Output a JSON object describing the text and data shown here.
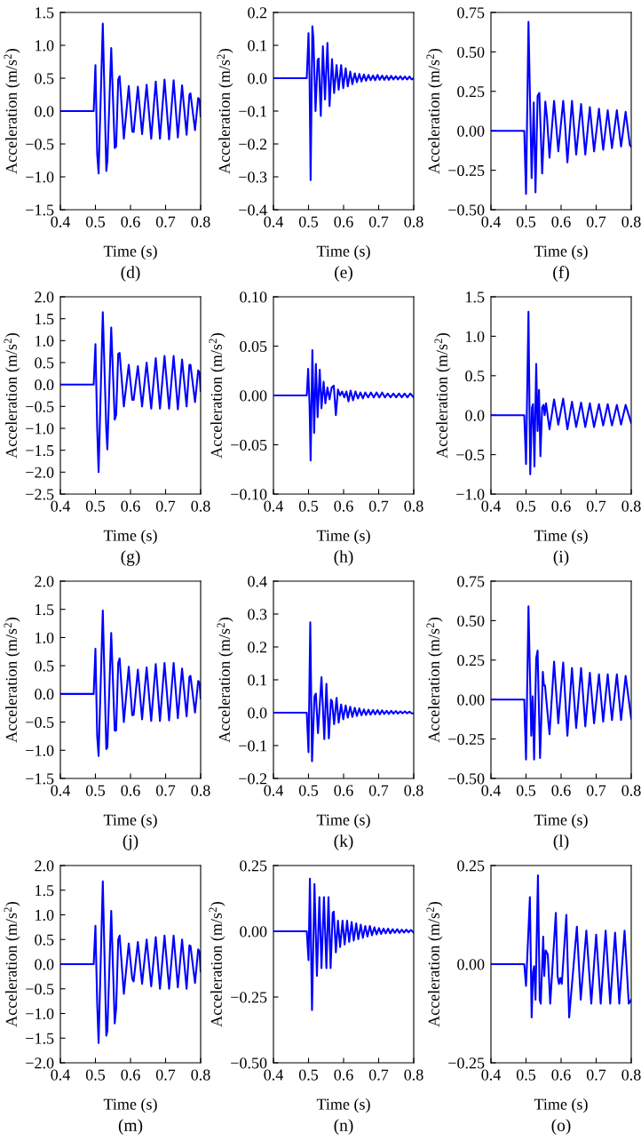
{
  "chart_data": [
    {
      "type": "line",
      "xlabel": "Time (s)",
      "ylabel": "Acceleration (m/s$^{2}$)",
      "annotations": [
        "(d)"
      ],
      "xlim": [
        0.4,
        0.8
      ],
      "xticks": [
        0.4,
        0.5,
        0.6,
        0.7,
        0.8
      ],
      "ylim": [
        -1.5,
        1.5
      ],
      "yticks": [
        {
          "value": -1.5,
          "label": "−1.5"
        },
        {
          "value": -1.0,
          "label": "−1.0"
        },
        {
          "value": -0.5,
          "label": "−0.5"
        },
        {
          "value": 0,
          "label": "0.0"
        },
        {
          "value": 0.5,
          "label": "0.5"
        },
        {
          "value": 1.0,
          "label": "1.0"
        },
        {
          "value": 1.5,
          "label": "1.5"
        }
      ],
      "series": [
        {
          "color": "#0000ff",
          "x": [
            0.4,
            0.495,
            0.5,
            0.505,
            0.509,
            0.521,
            0.531,
            0.534,
            0.545,
            0.555,
            0.559,
            0.565,
            0.569,
            0.581,
            0.595,
            0.605,
            0.609,
            0.621,
            0.633,
            0.646,
            0.659,
            0.672,
            0.684,
            0.697,
            0.71,
            0.723,
            0.735,
            0.747,
            0.76,
            0.768,
            0.771,
            0.784,
            0.793,
            0.797,
            0.8
          ],
          "values": [
            0,
            0,
            0.7,
            -0.65,
            -0.95,
            1.33,
            -0.91,
            -0.76,
            0.96,
            -0.56,
            -0.54,
            0.48,
            0.53,
            -0.42,
            0.38,
            -0.31,
            -0.32,
            0.37,
            -0.35,
            0.4,
            -0.42,
            0.45,
            -0.42,
            0.48,
            -0.43,
            0.47,
            -0.4,
            0.39,
            -0.36,
            0.25,
            0.27,
            -0.29,
            0.2,
            0.17,
            -0.08
          ]
        }
      ]
    },
    {
      "type": "line",
      "xlabel": "Time (s)",
      "ylabel": "Acceleration (m/s$^{2}$)",
      "annotations": [
        "(e)"
      ],
      "xlim": [
        0.4,
        0.8
      ],
      "xticks": [
        0.4,
        0.5,
        0.6,
        0.7,
        0.8
      ],
      "ylim": [
        -0.4,
        0.2
      ],
      "yticks": [
        {
          "value": -0.4,
          "label": "−0.4"
        },
        {
          "value": -0.3,
          "label": "−0.3"
        },
        {
          "value": -0.2,
          "label": "−0.2"
        },
        {
          "value": -0.1,
          "label": "−0.1"
        },
        {
          "value": 0,
          "label": "0.0"
        },
        {
          "value": 0.1,
          "label": "0.1"
        },
        {
          "value": 0.2,
          "label": "0.2"
        }
      ],
      "series": [
        {
          "color": "#0000ff",
          "x": [
            0.4,
            0.495,
            0.5,
            0.503,
            0.506,
            0.511,
            0.514,
            0.52,
            0.526,
            0.529,
            0.535,
            0.541,
            0.547,
            0.554,
            0.56,
            0.567,
            0.573,
            0.58,
            0.586,
            0.593,
            0.599,
            0.606,
            0.612,
            0.619,
            0.625,
            0.632,
            0.638,
            0.645,
            0.651,
            0.658,
            0.664,
            0.671,
            0.677,
            0.684,
            0.69,
            0.697,
            0.703,
            0.71,
            0.716,
            0.723,
            0.729,
            0.736,
            0.742,
            0.749,
            0.755,
            0.762,
            0.768,
            0.775,
            0.781,
            0.788,
            0.794,
            0.8
          ],
          "values": [
            0,
            0,
            0.137,
            0.0,
            -0.31,
            0.158,
            0.12,
            -0.1,
            0.055,
            0.06,
            -0.115,
            0.097,
            -0.065,
            0.107,
            -0.085,
            0.058,
            -0.045,
            0.04,
            -0.035,
            0.04,
            -0.03,
            0.03,
            -0.025,
            0.02,
            -0.018,
            0.015,
            -0.012,
            0.013,
            -0.01,
            0.011,
            -0.008,
            0.01,
            -0.006,
            0.008,
            -0.006,
            0.01,
            -0.005,
            0.008,
            -0.005,
            0.007,
            -0.005,
            0.007,
            -0.004,
            0.006,
            -0.004,
            0.006,
            -0.004,
            0.005,
            -0.004,
            0.005,
            -0.004,
            0.0
          ]
        }
      ]
    },
    {
      "type": "line",
      "xlabel": "Time (s)",
      "ylabel": "Acceleration (m/s$^{2}$)",
      "annotations": [
        "(f)"
      ],
      "xlim": [
        0.4,
        0.8
      ],
      "xticks": [
        0.4,
        0.5,
        0.6,
        0.7,
        0.8
      ],
      "ylim": [
        -0.5,
        0.75
      ],
      "yticks": [
        {
          "value": -0.5,
          "label": "−0.50"
        },
        {
          "value": -0.25,
          "label": "−0.25"
        },
        {
          "value": 0,
          "label": "0.00"
        },
        {
          "value": 0.25,
          "label": "0.25"
        },
        {
          "value": 0.5,
          "label": "0.50"
        },
        {
          "value": 0.75,
          "label": "0.75"
        }
      ],
      "series": [
        {
          "color": "#0000ff",
          "x": [
            0.4,
            0.495,
            0.5,
            0.507,
            0.516,
            0.522,
            0.527,
            0.533,
            0.538,
            0.546,
            0.555,
            0.56,
            0.567,
            0.58,
            0.585,
            0.592,
            0.606,
            0.611,
            0.618,
            0.631,
            0.643,
            0.657,
            0.669,
            0.682,
            0.694,
            0.708,
            0.72,
            0.733,
            0.745,
            0.759,
            0.771,
            0.784,
            0.796,
            0.8
          ],
          "values": [
            0,
            0,
            -0.4,
            0.69,
            -0.3,
            0.18,
            -0.39,
            0.22,
            0.24,
            -0.27,
            0.185,
            0.08,
            -0.17,
            0.19,
            0.06,
            -0.13,
            0.19,
            0.05,
            -0.2,
            0.19,
            -0.15,
            0.17,
            -0.15,
            0.15,
            -0.13,
            0.14,
            -0.12,
            0.13,
            -0.11,
            0.13,
            -0.1,
            0.12,
            -0.09,
            -0.1
          ]
        }
      ]
    },
    {
      "type": "line",
      "xlabel": "Time (s)",
      "ylabel": "Acceleration (m/s$^{2}$)",
      "annotations": [
        "(g)"
      ],
      "xlim": [
        0.4,
        0.8
      ],
      "xticks": [
        0.4,
        0.5,
        0.6,
        0.7,
        0.8
      ],
      "ylim": [
        -2.5,
        2.0
      ],
      "yticks": [
        {
          "value": -2.5,
          "label": "−2.5"
        },
        {
          "value": -2.0,
          "label": "−2.0"
        },
        {
          "value": -1.5,
          "label": "−1.5"
        },
        {
          "value": -1.0,
          "label": "−1.0"
        },
        {
          "value": -0.5,
          "label": "−0.5"
        },
        {
          "value": 0,
          "label": "0.0"
        },
        {
          "value": 0.5,
          "label": "0.5"
        },
        {
          "value": 1.0,
          "label": "1.0"
        },
        {
          "value": 1.5,
          "label": "1.5"
        },
        {
          "value": 2.0,
          "label": "2.0"
        }
      ],
      "series": [
        {
          "color": "#0000ff",
          "x": [
            0.4,
            0.495,
            0.5,
            0.505,
            0.509,
            0.521,
            0.531,
            0.534,
            0.545,
            0.555,
            0.559,
            0.565,
            0.569,
            0.581,
            0.595,
            0.605,
            0.609,
            0.621,
            0.633,
            0.646,
            0.659,
            0.672,
            0.684,
            0.697,
            0.71,
            0.723,
            0.735,
            0.747,
            0.76,
            0.768,
            0.771,
            0.784,
            0.793,
            0.797,
            0.8
          ],
          "values": [
            0,
            0,
            0.92,
            -1.0,
            -2.0,
            1.65,
            -1.05,
            -1.48,
            1.3,
            -0.8,
            -0.7,
            0.7,
            0.72,
            -0.5,
            0.45,
            -0.35,
            -0.35,
            0.42,
            -0.5,
            0.5,
            -0.55,
            0.6,
            -0.55,
            0.65,
            -0.55,
            0.65,
            -0.57,
            0.57,
            -0.5,
            0.45,
            0.45,
            -0.4,
            0.32,
            0.27,
            -0.15
          ]
        }
      ]
    },
    {
      "type": "line",
      "xlabel": "Time (s)",
      "ylabel": "Acceleration (m/s$^{2}$)",
      "annotations": [
        "(h)"
      ],
      "xlim": [
        0.4,
        0.8
      ],
      "xticks": [
        0.4,
        0.5,
        0.6,
        0.7,
        0.8
      ],
      "ylim": [
        -0.1,
        0.1
      ],
      "yticks": [
        {
          "value": -0.1,
          "label": "−0.10"
        },
        {
          "value": -0.05,
          "label": "−0.05"
        },
        {
          "value": 0,
          "label": "0.00"
        },
        {
          "value": 0.05,
          "label": "0.05"
        },
        {
          "value": 0.1,
          "label": "0.10"
        }
      ],
      "series": [
        {
          "color": "#0000ff",
          "x": [
            0.4,
            0.495,
            0.499,
            0.503,
            0.506,
            0.511,
            0.516,
            0.521,
            0.526,
            0.532,
            0.537,
            0.543,
            0.548,
            0.554,
            0.56,
            0.566,
            0.572,
            0.578,
            0.584,
            0.59,
            0.596,
            0.602,
            0.608,
            0.614,
            0.62,
            0.627,
            0.634,
            0.641,
            0.648,
            0.655,
            0.662,
            0.67,
            0.678,
            0.686,
            0.694,
            0.702,
            0.71,
            0.718,
            0.726,
            0.734,
            0.742,
            0.75,
            0.758,
            0.766,
            0.774,
            0.782,
            0.79,
            0.8
          ],
          "values": [
            0,
            0,
            0.027,
            -0.01,
            -0.066,
            0.046,
            -0.038,
            0.032,
            -0.022,
            0.026,
            -0.013,
            0.014,
            -0.008,
            0.008,
            -0.004,
            0.008,
            0.01,
            -0.02,
            0.006,
            0.0,
            0.004,
            -0.002,
            0.004,
            -0.006,
            0.005,
            -0.005,
            0.004,
            -0.003,
            0.003,
            -0.003,
            0.003,
            -0.002,
            0.003,
            -0.002,
            0.003,
            -0.002,
            0.003,
            -0.002,
            0.002,
            -0.002,
            0.002,
            -0.002,
            0.002,
            -0.002,
            0.002,
            -0.002,
            0.002,
            -0.002
          ]
        }
      ]
    },
    {
      "type": "line",
      "xlabel": "Time (s)",
      "ylabel": "Acceleration (m/s$^{2}$)",
      "annotations": [
        "(i)"
      ],
      "xlim": [
        0.4,
        0.8
      ],
      "xticks": [
        0.4,
        0.5,
        0.6,
        0.7,
        0.8
      ],
      "ylim": [
        -1.0,
        1.5
      ],
      "yticks": [
        {
          "value": -1.0,
          "label": "−1.0"
        },
        {
          "value": -0.5,
          "label": "−0.5"
        },
        {
          "value": 0,
          "label": "0.0"
        },
        {
          "value": 0.5,
          "label": "0.5"
        },
        {
          "value": 1.0,
          "label": "1.0"
        },
        {
          "value": 1.5,
          "label": "1.5"
        }
      ],
      "series": [
        {
          "color": "#0000ff",
          "x": [
            0.4,
            0.495,
            0.5,
            0.507,
            0.512,
            0.517,
            0.52,
            0.524,
            0.529,
            0.533,
            0.537,
            0.541,
            0.546,
            0.55,
            0.553,
            0.557,
            0.567,
            0.58,
            0.592,
            0.606,
            0.618,
            0.631,
            0.643,
            0.657,
            0.669,
            0.682,
            0.694,
            0.708,
            0.72,
            0.733,
            0.745,
            0.759,
            0.771,
            0.784,
            0.8
          ],
          "values": [
            0,
            0,
            -0.62,
            1.31,
            -0.75,
            0.1,
            0.14,
            -0.65,
            0.65,
            -0.2,
            0.32,
            -0.52,
            0.1,
            0.13,
            0.0,
            0.15,
            -0.18,
            0.2,
            -0.12,
            0.21,
            -0.18,
            0.17,
            -0.15,
            0.16,
            -0.15,
            0.15,
            -0.15,
            0.14,
            -0.13,
            0.14,
            -0.13,
            0.13,
            -0.12,
            0.13,
            -0.1
          ]
        }
      ]
    },
    {
      "type": "line",
      "xlabel": "Time (s)",
      "ylabel": "Acceleration (m/s$^{2}$)",
      "annotations": [
        "(j)"
      ],
      "xlim": [
        0.4,
        0.8
      ],
      "xticks": [
        0.4,
        0.5,
        0.6,
        0.7,
        0.8
      ],
      "ylim": [
        -1.5,
        2.0
      ],
      "yticks": [
        {
          "value": -1.5,
          "label": "−1.5"
        },
        {
          "value": -1.0,
          "label": "−1.0"
        },
        {
          "value": -0.5,
          "label": "−0.5"
        },
        {
          "value": 0,
          "label": "0.0"
        },
        {
          "value": 0.5,
          "label": "0.5"
        },
        {
          "value": 1.0,
          "label": "1.0"
        },
        {
          "value": 1.5,
          "label": "1.5"
        },
        {
          "value": 2.0,
          "label": "2.0"
        }
      ],
      "series": [
        {
          "color": "#0000ff",
          "x": [
            0.4,
            0.495,
            0.5,
            0.505,
            0.509,
            0.521,
            0.531,
            0.534,
            0.545,
            0.555,
            0.559,
            0.565,
            0.569,
            0.581,
            0.595,
            0.605,
            0.609,
            0.621,
            0.633,
            0.646,
            0.659,
            0.672,
            0.684,
            0.697,
            0.71,
            0.723,
            0.735,
            0.747,
            0.76,
            0.768,
            0.771,
            0.784,
            0.793,
            0.797,
            0.8
          ],
          "values": [
            0,
            0,
            0.8,
            -0.75,
            -1.1,
            1.48,
            -0.98,
            -0.95,
            1.08,
            -0.65,
            -0.65,
            0.55,
            0.63,
            -0.5,
            0.48,
            -0.38,
            -0.37,
            0.43,
            -0.45,
            0.47,
            -0.48,
            0.53,
            -0.48,
            0.55,
            -0.47,
            0.55,
            -0.43,
            0.45,
            -0.4,
            0.3,
            0.32,
            -0.33,
            0.23,
            0.2,
            -0.08
          ]
        }
      ]
    },
    {
      "type": "line",
      "xlabel": "Time (s)",
      "ylabel": "Acceleration (m/s$^{2}$)",
      "annotations": [
        "(k)"
      ],
      "xlim": [
        0.4,
        0.8
      ],
      "xticks": [
        0.4,
        0.5,
        0.6,
        0.7,
        0.8
      ],
      "ylim": [
        -0.2,
        0.4
      ],
      "yticks": [
        {
          "value": -0.2,
          "label": "−0.2"
        },
        {
          "value": -0.1,
          "label": "−0.1"
        },
        {
          "value": 0,
          "label": "0.0"
        },
        {
          "value": 0.1,
          "label": "0.1"
        },
        {
          "value": 0.2,
          "label": "0.2"
        },
        {
          "value": 0.3,
          "label": "0.3"
        },
        {
          "value": 0.4,
          "label": "0.4"
        }
      ],
      "series": [
        {
          "color": "#0000ff",
          "x": [
            0.4,
            0.495,
            0.5,
            0.505,
            0.51,
            0.517,
            0.521,
            0.527,
            0.537,
            0.545,
            0.551,
            0.558,
            0.564,
            0.567,
            0.573,
            0.58,
            0.586,
            0.593,
            0.599,
            0.606,
            0.612,
            0.619,
            0.625,
            0.632,
            0.638,
            0.645,
            0.651,
            0.658,
            0.664,
            0.671,
            0.677,
            0.684,
            0.69,
            0.697,
            0.703,
            0.71,
            0.716,
            0.723,
            0.729,
            0.736,
            0.742,
            0.749,
            0.755,
            0.762,
            0.768,
            0.775,
            0.781,
            0.788,
            0.794,
            0.8
          ],
          "values": [
            0,
            0,
            -0.12,
            0.275,
            -0.148,
            0.05,
            0.058,
            -0.062,
            0.108,
            -0.08,
            0.088,
            -0.078,
            0.04,
            0.035,
            -0.035,
            0.045,
            -0.03,
            0.025,
            -0.02,
            0.022,
            -0.015,
            0.018,
            -0.013,
            0.015,
            -0.01,
            0.013,
            -0.008,
            0.01,
            -0.007,
            0.009,
            -0.006,
            0.008,
            -0.005,
            0.008,
            -0.005,
            0.007,
            -0.004,
            0.006,
            -0.004,
            0.006,
            -0.003,
            0.005,
            -0.003,
            0.004,
            -0.002,
            0.004,
            -0.002,
            0.003,
            -0.002,
            -0.002
          ]
        }
      ]
    },
    {
      "type": "line",
      "xlabel": "Time (s)",
      "ylabel": "Acceleration (m/s$^{2}$)",
      "annotations": [
        "(l)"
      ],
      "xlim": [
        0.4,
        0.8
      ],
      "xticks": [
        0.4,
        0.5,
        0.6,
        0.7,
        0.8
      ],
      "ylim": [
        -0.5,
        0.75
      ],
      "yticks": [
        {
          "value": -0.5,
          "label": "−0.50"
        },
        {
          "value": -0.25,
          "label": "−0.25"
        },
        {
          "value": 0,
          "label": "0.00"
        },
        {
          "value": 0.25,
          "label": "0.25"
        },
        {
          "value": 0.5,
          "label": "0.50"
        },
        {
          "value": 0.75,
          "label": "0.75"
        }
      ],
      "series": [
        {
          "color": "#0000ff",
          "x": [
            0.4,
            0.495,
            0.5,
            0.507,
            0.515,
            0.519,
            0.523,
            0.529,
            0.533,
            0.54,
            0.548,
            0.551,
            0.554,
            0.567,
            0.58,
            0.592,
            0.606,
            0.618,
            0.631,
            0.643,
            0.657,
            0.669,
            0.682,
            0.694,
            0.708,
            0.72,
            0.733,
            0.745,
            0.759,
            0.771,
            0.784,
            0.8
          ],
          "values": [
            0,
            0,
            -0.38,
            0.59,
            -0.23,
            0.02,
            -0.38,
            0.26,
            0.31,
            -0.37,
            0.175,
            0.09,
            0.09,
            -0.22,
            0.24,
            -0.15,
            0.235,
            -0.23,
            0.2,
            -0.18,
            0.2,
            -0.17,
            0.17,
            -0.15,
            0.16,
            -0.14,
            0.16,
            -0.13,
            0.16,
            -0.13,
            0.15,
            -0.12
          ]
        }
      ]
    },
    {
      "type": "line",
      "xlabel": "Time (s)",
      "ylabel": "Acceleration (m/s$^{2}$)",
      "annotations": [
        "(m)"
      ],
      "xlim": [
        0.4,
        0.8
      ],
      "xticks": [
        0.4,
        0.5,
        0.6,
        0.7,
        0.8
      ],
      "ylim": [
        -2.0,
        2.0
      ],
      "yticks": [
        {
          "value": -2.0,
          "label": "−2.0"
        },
        {
          "value": -1.5,
          "label": "−1.5"
        },
        {
          "value": -1.0,
          "label": "−1.0"
        },
        {
          "value": -0.5,
          "label": "−0.5"
        },
        {
          "value": 0,
          "label": "0.0"
        },
        {
          "value": 0.5,
          "label": "0.5"
        },
        {
          "value": 1.0,
          "label": "1.0"
        },
        {
          "value": 1.5,
          "label": "1.5"
        },
        {
          "value": 2.0,
          "label": "2.0"
        }
      ],
      "series": [
        {
          "color": "#0000ff",
          "x": [
            0.4,
            0.495,
            0.5,
            0.505,
            0.509,
            0.521,
            0.531,
            0.534,
            0.545,
            0.555,
            0.559,
            0.565,
            0.569,
            0.581,
            0.595,
            0.605,
            0.609,
            0.621,
            0.633,
            0.646,
            0.659,
            0.672,
            0.684,
            0.697,
            0.71,
            0.723,
            0.735,
            0.747,
            0.76,
            0.768,
            0.771,
            0.784,
            0.793,
            0.797,
            0.8
          ],
          "values": [
            0,
            0,
            0.78,
            -0.8,
            -1.6,
            1.68,
            -1.45,
            -1.35,
            1.08,
            -1.2,
            -0.9,
            0.5,
            0.58,
            -0.6,
            0.42,
            -0.3,
            -0.35,
            0.45,
            -0.4,
            0.5,
            -0.45,
            0.55,
            -0.5,
            0.58,
            -0.5,
            0.58,
            -0.47,
            0.5,
            -0.5,
            0.38,
            0.37,
            -0.38,
            0.3,
            0.25,
            -0.15
          ]
        }
      ]
    },
    {
      "type": "line",
      "xlabel": "Time (s)",
      "ylabel": "Acceleration (m/s$^{2}$)",
      "annotations": [
        "(n)"
      ],
      "xlim": [
        0.4,
        0.8
      ],
      "xticks": [
        0.4,
        0.5,
        0.6,
        0.7,
        0.8
      ],
      "ylim": [
        -0.5,
        0.25
      ],
      "yticks": [
        {
          "value": -0.5,
          "label": "−0.50"
        },
        {
          "value": -0.25,
          "label": "−0.25"
        },
        {
          "value": 0,
          "label": "0.00"
        },
        {
          "value": 0.25,
          "label": "0.25"
        }
      ],
      "series": [
        {
          "color": "#0000ff",
          "x": [
            0.4,
            0.495,
            0.5,
            0.504,
            0.51,
            0.517,
            0.524,
            0.531,
            0.537,
            0.544,
            0.551,
            0.557,
            0.563,
            0.569,
            0.572,
            0.578,
            0.584,
            0.59,
            0.597,
            0.603,
            0.61,
            0.616,
            0.623,
            0.629,
            0.636,
            0.642,
            0.649,
            0.655,
            0.662,
            0.668,
            0.675,
            0.681,
            0.688,
            0.694,
            0.701,
            0.707,
            0.714,
            0.72,
            0.727,
            0.733,
            0.74,
            0.746,
            0.753,
            0.759,
            0.766,
            0.772,
            0.779,
            0.785,
            0.792,
            0.8
          ],
          "values": [
            0,
            0,
            -0.11,
            0.2,
            -0.3,
            0.18,
            -0.17,
            0.13,
            -0.14,
            0.13,
            -0.14,
            0.13,
            -0.14,
            0.07,
            0.075,
            -0.08,
            0.04,
            -0.06,
            0.04,
            -0.05,
            0.04,
            -0.04,
            0.035,
            -0.035,
            0.03,
            -0.03,
            0.025,
            -0.025,
            0.02,
            -0.02,
            0.02,
            -0.015,
            0.015,
            -0.012,
            0.012,
            -0.01,
            0.01,
            -0.008,
            0.01,
            -0.008,
            0.008,
            -0.006,
            0.008,
            -0.006,
            0.006,
            -0.005,
            0.006,
            -0.004,
            0.005,
            -0.005
          ]
        }
      ]
    },
    {
      "type": "line",
      "xlabel": "Time (s)",
      "ylabel": "Acceleration (m/s$^{2}$)",
      "annotations": [
        "(o)"
      ],
      "xlim": [
        0.4,
        0.8
      ],
      "xticks": [
        0.4,
        0.5,
        0.6,
        0.7,
        0.8
      ],
      "ylim": [
        -0.25,
        0.25
      ],
      "yticks": [
        {
          "value": -0.25,
          "label": "−0.25"
        },
        {
          "value": 0,
          "label": "0.00"
        },
        {
          "value": 0.25,
          "label": "0.25"
        }
      ],
      "series": [
        {
          "color": "#0000ff",
          "x": [
            0.4,
            0.495,
            0.5,
            0.511,
            0.516,
            0.52,
            0.523,
            0.527,
            0.534,
            0.539,
            0.542,
            0.549,
            0.552,
            0.556,
            0.562,
            0.569,
            0.585,
            0.59,
            0.594,
            0.598,
            0.602,
            0.615,
            0.623,
            0.645,
            0.656,
            0.672,
            0.686,
            0.7,
            0.713,
            0.727,
            0.74,
            0.754,
            0.766,
            0.781,
            0.793,
            0.8
          ],
          "values": [
            0,
            0,
            -0.055,
            0.17,
            -0.135,
            -0.02,
            -0.005,
            -0.09,
            0.225,
            -0.09,
            -0.1,
            0.07,
            -0.03,
            0.035,
            0.025,
            -0.1,
            0.13,
            -0.03,
            -0.05,
            -0.035,
            -0.05,
            0.125,
            -0.135,
            0.095,
            -0.09,
            0.085,
            -0.1,
            0.075,
            -0.1,
            0.085,
            -0.1,
            0.08,
            -0.1,
            0.085,
            -0.1,
            -0.09
          ]
        }
      ]
    }
  ]
}
